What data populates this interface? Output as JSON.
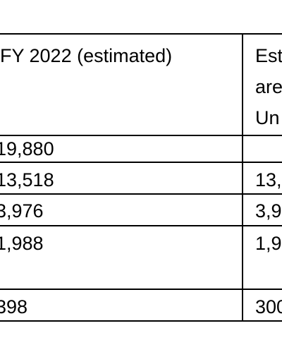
{
  "table": {
    "header": {
      "col1": "FY 2022 (estimated)",
      "col2_lines": [
        "Est",
        "are",
        "Un"
      ]
    },
    "rows": [
      {
        "col1": "19,880",
        "col2": ""
      },
      {
        "col1": "13,518",
        "col2": "13,"
      },
      {
        "col1": "3,976",
        "col2": "3,9"
      },
      {
        "col1": "1,988",
        "col2": "1,9"
      },
      {
        "col1": "398",
        "col2": "300"
      }
    ]
  }
}
